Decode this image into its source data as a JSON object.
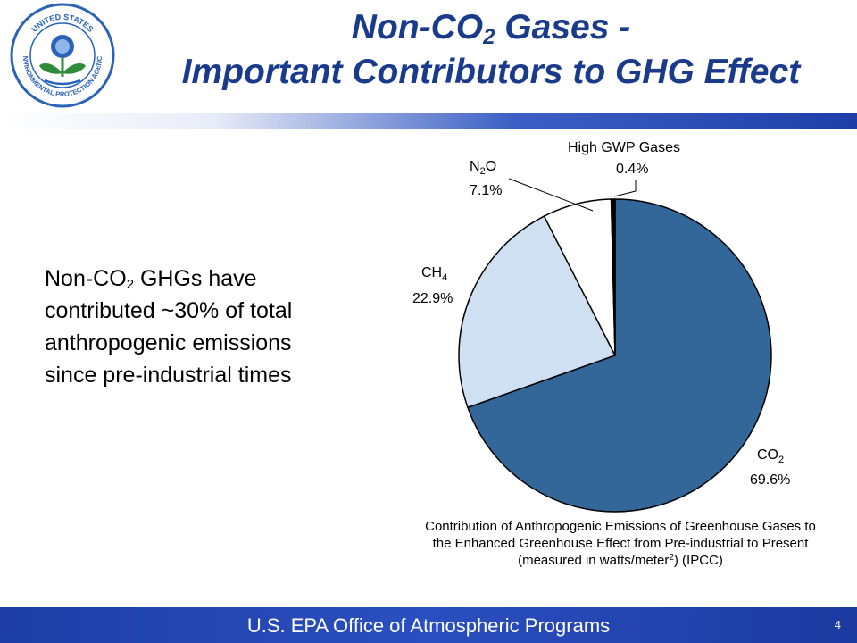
{
  "header": {
    "title_pre": "Non-CO",
    "title_sub": "2",
    "title_post": " Gases -",
    "title_line2": "Important Contributors to GHG Effect"
  },
  "logo": {
    "icon": "epa-seal-icon",
    "text": "UNITED STATES ENVIRONMENTAL PROTECTION AGENCY"
  },
  "body": {
    "line1_pre": "Non-CO",
    "line1_sub": "2",
    "line1_post": " GHGs have",
    "line2": "contributed ~30% of total",
    "line3": "anthropogenic emissions",
    "line4": "since pre-industrial times"
  },
  "chart_data": {
    "type": "pie",
    "slices": [
      {
        "label_main": "CO",
        "label_sub": "2",
        "value": 69.6,
        "value_label": "69.6%",
        "color": "#336699"
      },
      {
        "label_main": "CH",
        "label_sub": "4",
        "value": 22.9,
        "value_label": "22.9%",
        "color": "#cfe0f3"
      },
      {
        "label_main": "N",
        "label_sub": "2",
        "label_tail": "O",
        "value": 7.1,
        "value_label": "7.1%",
        "color": "#ffffff"
      },
      {
        "label_main": "High GWP Gases",
        "value": 0.4,
        "value_label": "0.4%",
        "color": "#000000"
      }
    ]
  },
  "caption": {
    "text_pre": "Contribution of Anthropogenic Emissions of Greenhouse Gases to the Enhanced Greenhouse Effect from Pre-industrial to Present (measured in watts/meter",
    "text_sup": "2",
    "text_post": ") (IPCC)"
  },
  "footer": {
    "text": "U.S. EPA Office of Atmospheric Programs",
    "page": "4"
  },
  "colors": {
    "title": "#1a3a8c",
    "footer_bg": "#1e3ea6",
    "co2": "#336699",
    "ch4": "#cfe0f3"
  }
}
